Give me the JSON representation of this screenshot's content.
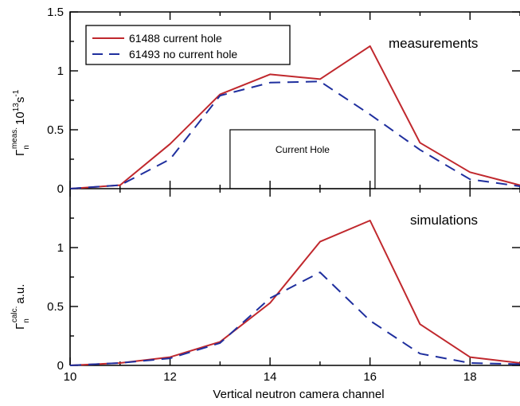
{
  "chart_data": [
    {
      "type": "line",
      "panel": "top",
      "annotation": "measurements",
      "ylabel": {
        "main": "Γ",
        "sub": "n",
        "sup": "meas.",
        "rest": "10",
        "exp": "13",
        "unit": "s",
        "unit_exp": "-1"
      },
      "xlim": [
        10,
        19
      ],
      "ylim": [
        0,
        1.5
      ],
      "y_ticks": [
        0,
        0.5,
        1,
        1.5
      ],
      "y_tick_labels": [
        "0",
        "0.5",
        "1",
        "1.5"
      ],
      "x": [
        10,
        11,
        12,
        13,
        14,
        15,
        16,
        17,
        18,
        19
      ],
      "series": [
        {
          "name": "61488 current hole",
          "color": "#c0282d",
          "dash": "solid",
          "values": [
            0.0,
            0.03,
            0.38,
            0.8,
            0.97,
            0.93,
            1.21,
            0.39,
            0.14,
            0.03
          ]
        },
        {
          "name": "61493 no current hole",
          "color": "#1f2f9e",
          "dash": "dashed",
          "values": [
            0.0,
            0.03,
            0.25,
            0.79,
            0.9,
            0.91,
            0.63,
            0.33,
            0.08,
            0.02
          ]
        }
      ],
      "box": {
        "label": "Current Hole",
        "x_range": [
          13.2,
          16.1
        ],
        "y_range": [
          0,
          0.5
        ]
      },
      "legend_position": "top-left"
    },
    {
      "type": "line",
      "panel": "bottom",
      "annotation": "simulations",
      "ylabel": {
        "main": "Γ",
        "sub": "n",
        "sup": "calc.",
        "rest": "a.u."
      },
      "xlabel": "Vertical neutron camera channel",
      "xlim": [
        10,
        19
      ],
      "ylim": [
        0,
        1.5
      ],
      "y_ticks": [
        0,
        0.5,
        1
      ],
      "y_tick_labels": [
        "0",
        "0.5",
        "1"
      ],
      "x_ticks": [
        10,
        12,
        14,
        16,
        18
      ],
      "x_tick_labels": [
        "10",
        "12",
        "14",
        "16",
        "18"
      ],
      "x": [
        10,
        11,
        12,
        13,
        14,
        15,
        16,
        17,
        18,
        19
      ],
      "series": [
        {
          "name": "61488 current hole",
          "color": "#c0282d",
          "dash": "solid",
          "values": [
            0.0,
            0.02,
            0.07,
            0.2,
            0.53,
            1.05,
            1.23,
            0.35,
            0.07,
            0.02
          ]
        },
        {
          "name": "61493 no current hole",
          "color": "#1f2f9e",
          "dash": "dashed",
          "values": [
            0.0,
            0.02,
            0.06,
            0.19,
            0.57,
            0.79,
            0.38,
            0.1,
            0.02,
            0.01
          ]
        }
      ]
    }
  ]
}
